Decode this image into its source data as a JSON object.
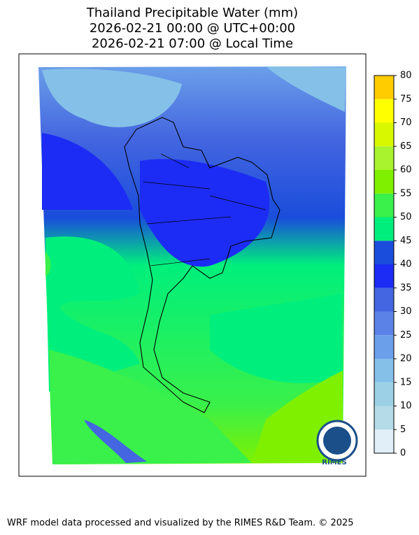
{
  "header": {
    "title_lines": [
      "Thailand Precipitable Water (mm)",
      "2026-02-21 00:00 @ UTC+00:00",
      "2026-02-21 07:00 @ Local Time"
    ]
  },
  "colorbar": {
    "ticks": [
      0,
      5,
      10,
      15,
      20,
      25,
      30,
      35,
      40,
      45,
      50,
      55,
      60,
      65,
      70,
      75,
      80
    ],
    "colors": [
      "#e1eff9",
      "#b5dbe9",
      "#9bd0e6",
      "#84c0e8",
      "#6b9fe9",
      "#5b82e6",
      "#4466e0",
      "#1c2cf4",
      "#1a4ddb",
      "#00ef7c",
      "#3af04a",
      "#7ff000",
      "#a9f22e",
      "#d8f800",
      "#ffff00",
      "#ffcc00"
    ]
  },
  "logo": {
    "label": "RIMES"
  },
  "footer": {
    "text": "WRF model data processed and visualized by the RIMES R&D Team. © 2025"
  }
}
